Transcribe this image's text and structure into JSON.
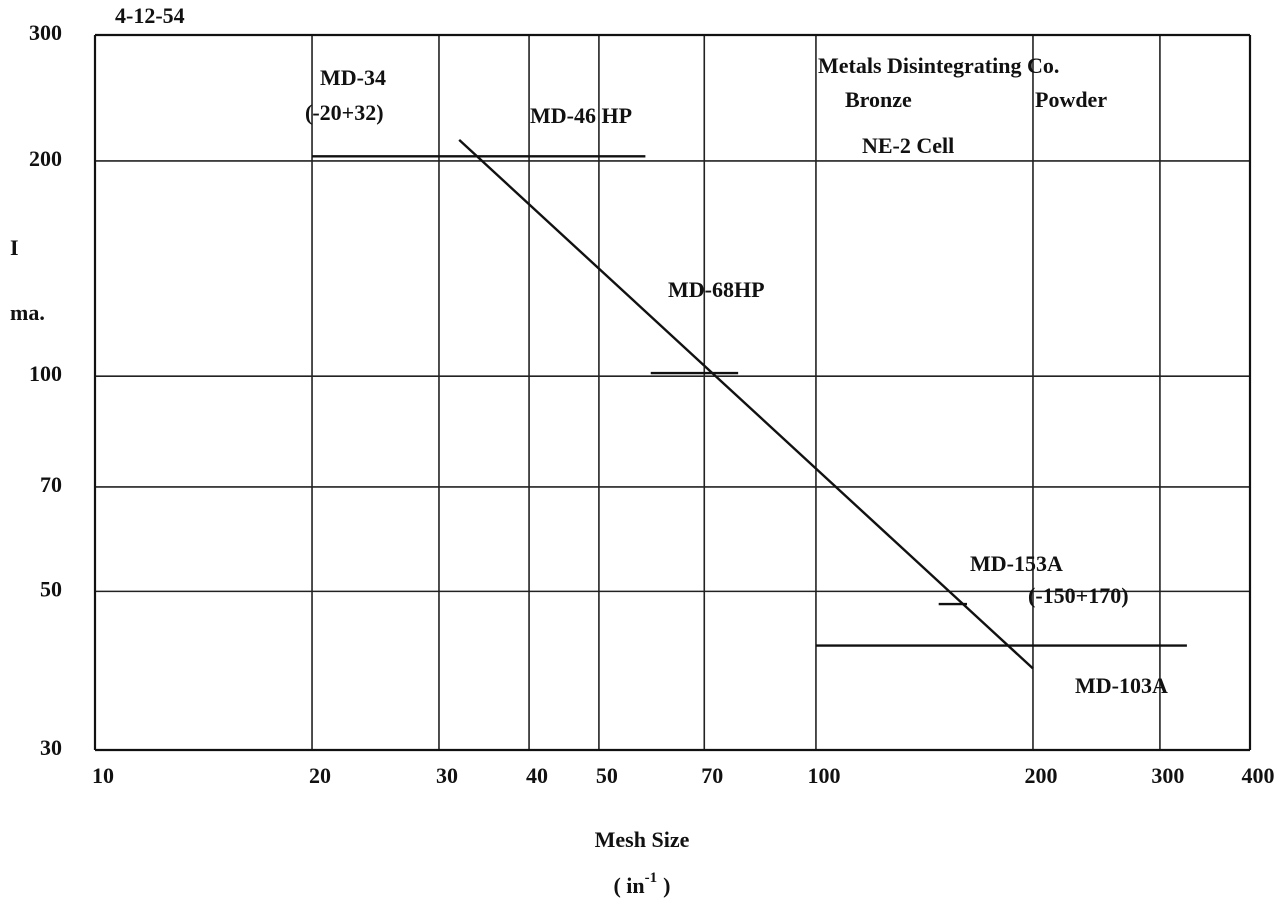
{
  "chart_data": {
    "type": "line",
    "log_x": true,
    "log_y": true,
    "grid": true,
    "xlim": [
      10,
      400
    ],
    "xticks": [
      10,
      20,
      30,
      40,
      50,
      70,
      100,
      200,
      300,
      400
    ],
    "ylim": [
      30,
      300
    ],
    "yticks": [
      30,
      50,
      70,
      100,
      200,
      300
    ],
    "ylabel": [
      "I",
      "ma."
    ],
    "xlabel": "Mesh Size",
    "x_unit_parts": [
      "( in",
      "-1",
      ")"
    ],
    "annotations": [
      "4-12-54",
      "MD-34",
      "(-20+32)",
      "MD-46 HP",
      "MD-68HP",
      "Metals Disintegrating Co.",
      "Bronze",
      "Powder",
      "NE-2 Cell",
      "MD-153A",
      "(-150+170)",
      "MD-103A"
    ],
    "series": [
      {
        "color": "#111111",
        "x": [
          32,
          200
        ],
        "values": [
          214,
          39
        ]
      },
      {
        "color": "#111111",
        "x": [
          20,
          58
        ],
        "values": [
          203,
          203
        ]
      },
      {
        "color": "#111111",
        "x": [
          59,
          78
        ],
        "values": [
          101,
          101
        ]
      },
      {
        "color": "#111111",
        "x": [
          148,
          162
        ],
        "values": [
          48,
          48
        ]
      },
      {
        "color": "#111111",
        "x": [
          100,
          327
        ],
        "values": [
          42,
          42
        ]
      }
    ]
  }
}
